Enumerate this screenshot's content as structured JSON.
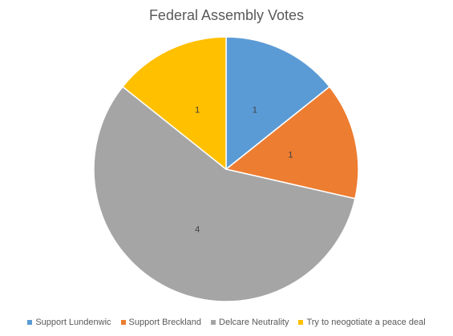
{
  "chart_data": {
    "type": "pie",
    "title": "Federal Assembly Votes",
    "categories": [
      "Support Lundenwic",
      "Support Breckland",
      "Delcare Neutrality",
      "Try to neogotiate a peace deal"
    ],
    "values": [
      1,
      1,
      4,
      1
    ],
    "data_labels": [
      "1",
      "1",
      "4",
      "1"
    ],
    "colors": [
      "#5B9BD5",
      "#ED7D31",
      "#A5A5A5",
      "#FFC000"
    ],
    "start_angle_deg": 0,
    "direction": "clockwise",
    "legend_position": "bottom"
  }
}
